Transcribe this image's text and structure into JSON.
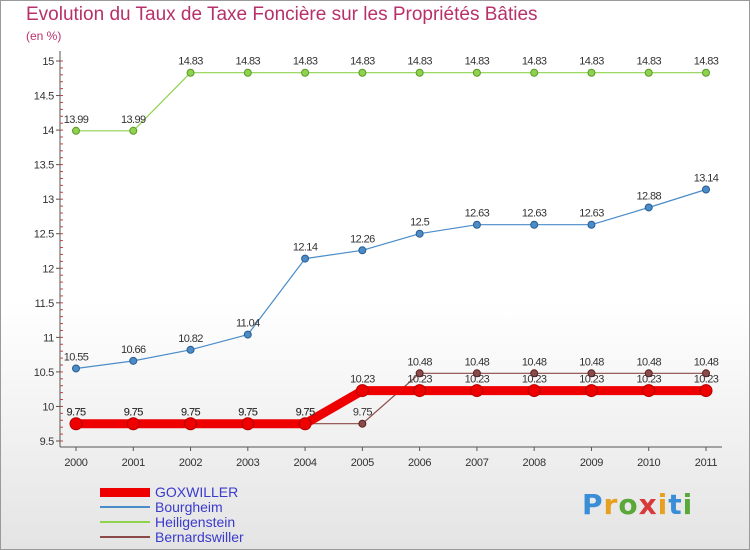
{
  "chart_data": {
    "type": "line",
    "title": "Evolution du Taux de Taxe Foncière sur les Propriétés Bâties",
    "ylabel": "(en %)",
    "xlabel": "",
    "x": [
      "2000",
      "2001",
      "2002",
      "2003",
      "2004",
      "2005",
      "2006",
      "2007",
      "2008",
      "2009",
      "2010",
      "2011"
    ],
    "ylim": [
      9.5,
      15
    ],
    "yticks": [
      "9.5",
      "10",
      "10.5",
      "11",
      "11.5",
      "12",
      "12.5",
      "13",
      "13.5",
      "14",
      "14.5",
      "15"
    ],
    "series": [
      {
        "name": "GOXWILLER",
        "color": "#ee0000",
        "values": [
          9.75,
          9.75,
          9.75,
          9.75,
          9.75,
          10.23,
          10.23,
          10.23,
          10.23,
          10.23,
          10.23,
          10.23
        ],
        "labels": [
          "9.75",
          "9.75",
          "9.75",
          "9.75",
          "9.75",
          "10.23",
          "10.23",
          "10.23",
          "10.23",
          "10.23",
          "10.23",
          "10.23"
        ]
      },
      {
        "name": "Bourgheim",
        "color": "#4a8cc8",
        "values": [
          10.55,
          10.66,
          10.82,
          11.04,
          12.14,
          12.26,
          12.5,
          12.63,
          12.63,
          12.63,
          12.88,
          13.14
        ],
        "labels": [
          "10.55",
          "10.66",
          "10.82",
          "11.04",
          "12.14",
          "12.26",
          "12.5",
          "12.63",
          "12.63",
          "12.63",
          "12.88",
          "13.14"
        ]
      },
      {
        "name": "Heiligenstein",
        "color": "#8ed24e",
        "values": [
          13.99,
          13.99,
          14.83,
          14.83,
          14.83,
          14.83,
          14.83,
          14.83,
          14.83,
          14.83,
          14.83,
          14.83
        ],
        "labels": [
          "13.99",
          "13.99",
          "14.83",
          "14.83",
          "14.83",
          "14.83",
          "14.83",
          "14.83",
          "14.83",
          "14.83",
          "14.83",
          "14.83"
        ]
      },
      {
        "name": "Bernardswiller",
        "color": "#8a4a4a",
        "values": [
          9.75,
          9.75,
          9.75,
          9.75,
          9.75,
          9.75,
          10.48,
          10.48,
          10.48,
          10.48,
          10.48,
          10.48
        ],
        "labels": [
          "9.75",
          "9.75",
          "9.75",
          "9.75",
          "9.75",
          "9.75",
          "10.48",
          "10.48",
          "10.48",
          "10.48",
          "10.48",
          "10.48"
        ]
      }
    ],
    "legend_position": "bottom-left",
    "grid": false
  },
  "brand": {
    "letters": [
      "P",
      "r",
      "o",
      "x",
      "i",
      "t",
      "i"
    ],
    "colors": [
      "#3a8ed8",
      "#e8a020",
      "#5aa83a",
      "#d83a3a",
      "#e8a020",
      "#3a8ed8",
      "#5aa83a"
    ]
  }
}
